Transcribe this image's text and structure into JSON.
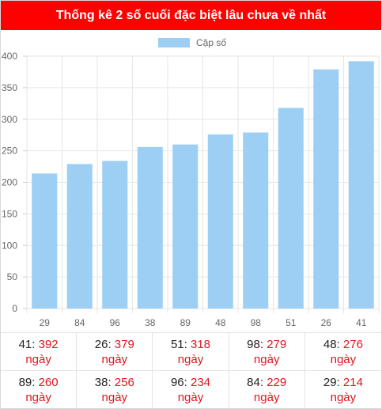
{
  "header": {
    "title": "Thống kê 2 số cuối đặc biệt lâu chưa về nhất"
  },
  "colors": {
    "header_bg": "#ff0000",
    "bar": "#9ccff3",
    "value_text": "#e0141e"
  },
  "chart_data": {
    "type": "bar",
    "categories": [
      "29",
      "84",
      "96",
      "38",
      "89",
      "48",
      "98",
      "51",
      "26",
      "41"
    ],
    "series": [
      {
        "name": "Cặp số",
        "values": [
          214,
          229,
          234,
          256,
          260,
          276,
          279,
          318,
          379,
          392
        ]
      }
    ],
    "ylim": [
      0,
      400
    ],
    "yticks": [
      "0",
      "50",
      "100",
      "150",
      "200",
      "250",
      "300",
      "350",
      "400"
    ],
    "grid": true,
    "legend": "top-center"
  },
  "stats": [
    {
      "pair": "41",
      "days": "392",
      "unit": "ngày"
    },
    {
      "pair": "26",
      "days": "379",
      "unit": "ngày"
    },
    {
      "pair": "51",
      "days": "318",
      "unit": "ngày"
    },
    {
      "pair": "98",
      "days": "279",
      "unit": "ngày"
    },
    {
      "pair": "48",
      "days": "276",
      "unit": "ngày"
    },
    {
      "pair": "89",
      "days": "260",
      "unit": "ngày"
    },
    {
      "pair": "38",
      "days": "256",
      "unit": "ngày"
    },
    {
      "pair": "96",
      "days": "234",
      "unit": "ngày"
    },
    {
      "pair": "84",
      "days": "229",
      "unit": "ngày"
    },
    {
      "pair": "29",
      "days": "214",
      "unit": "ngày"
    }
  ]
}
